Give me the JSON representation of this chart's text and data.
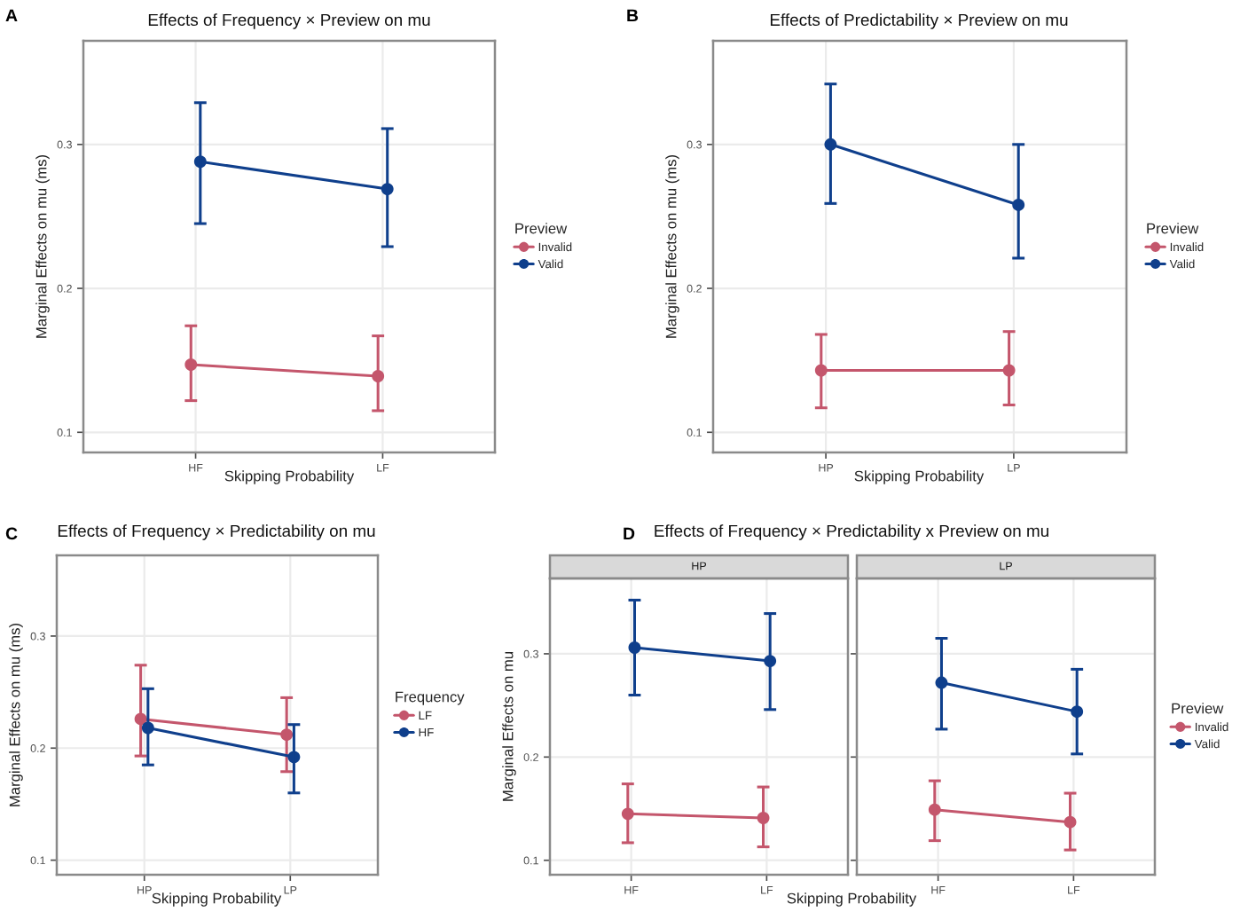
{
  "chart_data": [
    {
      "type": "line",
      "title": "Effects of Frequency × Preview on mu",
      "xlabel": "Skipping Probability",
      "ylabel": "Marginal Effects on mu (ms)",
      "legend_title": "Preview",
      "annotations": [
        "A"
      ],
      "categories": [
        "HF",
        "LF"
      ],
      "ylim": [
        0.086,
        0.372
      ],
      "yticks": [
        0.1,
        0.2,
        0.3
      ],
      "grid": true,
      "legend": "right",
      "marker": "circle",
      "line_style": "solid",
      "series": [
        {
          "name": "Invalid",
          "color": "#c4566c",
          "values": [
            0.147,
            0.139
          ],
          "errors": [
            [
              0.122,
              0.174
            ],
            [
              0.115,
              0.167
            ]
          ]
        },
        {
          "name": "Valid",
          "color": "#0f3f8c",
          "values": [
            0.288,
            0.269
          ],
          "errors": [
            [
              0.245,
              0.329
            ],
            [
              0.229,
              0.311
            ]
          ]
        }
      ]
    },
    {
      "type": "line",
      "title": "Effects of Predictability × Preview on mu",
      "xlabel": "Skipping Probability",
      "ylabel": "Marginal Effects on mu (ms)",
      "legend_title": "Preview",
      "annotations": [
        "B"
      ],
      "categories": [
        "HP",
        "LP"
      ],
      "ylim": [
        0.086,
        0.372
      ],
      "yticks": [
        0.1,
        0.2,
        0.3
      ],
      "grid": true,
      "legend": "right",
      "marker": "circle",
      "line_style": "solid",
      "series": [
        {
          "name": "Invalid",
          "color": "#c4566c",
          "values": [
            0.143,
            0.143
          ],
          "errors": [
            [
              0.117,
              0.168
            ],
            [
              0.119,
              0.17
            ]
          ]
        },
        {
          "name": "Valid",
          "color": "#0f3f8c",
          "values": [
            0.3,
            0.258
          ],
          "errors": [
            [
              0.259,
              0.342
            ],
            [
              0.221,
              0.3
            ]
          ]
        }
      ]
    },
    {
      "type": "line",
      "title": "Effects of Frequency × Predictability on mu",
      "xlabel": "Skipping Probability",
      "ylabel": "Marginal Effects on mu (ms)",
      "legend_title": "Frequency",
      "annotations": [
        "C"
      ],
      "categories": [
        "HP",
        "LP"
      ],
      "ylim": [
        0.087,
        0.372
      ],
      "yticks": [
        0.1,
        0.2,
        0.3
      ],
      "grid": true,
      "legend": "right",
      "marker": "circle",
      "line_style": "solid",
      "series": [
        {
          "name": "LF",
          "color": "#c4566c",
          "values": [
            0.226,
            0.212
          ],
          "errors": [
            [
              0.193,
              0.274
            ],
            [
              0.179,
              0.245
            ]
          ]
        },
        {
          "name": "HF",
          "color": "#0f3f8c",
          "values": [
            0.218,
            0.192
          ],
          "errors": [
            [
              0.185,
              0.253
            ],
            [
              0.16,
              0.221
            ]
          ]
        }
      ]
    },
    {
      "type": "line",
      "title": "Effects of Frequency × Predictability x Preview on mu",
      "subtitle": "HP",
      "xlabel": "Skipping Probability",
      "ylabel": "Marginal Effects on mu",
      "annotations": [
        "D"
      ],
      "categories": [
        "HF",
        "LF"
      ],
      "ylim": [
        0.086,
        0.373
      ],
      "yticks": [
        0.1,
        0.2,
        0.3
      ],
      "grid": true,
      "marker": "circle",
      "line_style": "solid",
      "series": [
        {
          "color": "#c4566c",
          "values": [
            0.145,
            0.141
          ],
          "errors": [
            [
              0.117,
              0.174
            ],
            [
              0.113,
              0.171
            ]
          ]
        },
        {
          "color": "#0f3f8c",
          "values": [
            0.306,
            0.293
          ],
          "errors": [
            [
              0.26,
              0.352
            ],
            [
              0.246,
              0.339
            ]
          ]
        }
      ]
    },
    {
      "type": "line",
      "subtitle": "LP",
      "legend_title": "Preview",
      "categories": [
        "HF",
        "LF"
      ],
      "ylim": [
        0.086,
        0.373
      ],
      "yticks": [
        0.1,
        0.2,
        0.3
      ],
      "tick_labels": "x",
      "grid": true,
      "legend": "right",
      "marker": "circle",
      "line_style": "solid",
      "series": [
        {
          "name": "Invalid",
          "color": "#c4566c",
          "values": [
            0.149,
            0.137
          ],
          "errors": [
            [
              0.119,
              0.177
            ],
            [
              0.11,
              0.165
            ]
          ]
        },
        {
          "name": "Valid",
          "color": "#0f3f8c",
          "values": [
            0.272,
            0.244
          ],
          "errors": [
            [
              0.227,
              0.315
            ],
            [
              0.203,
              0.285
            ]
          ]
        }
      ]
    }
  ]
}
